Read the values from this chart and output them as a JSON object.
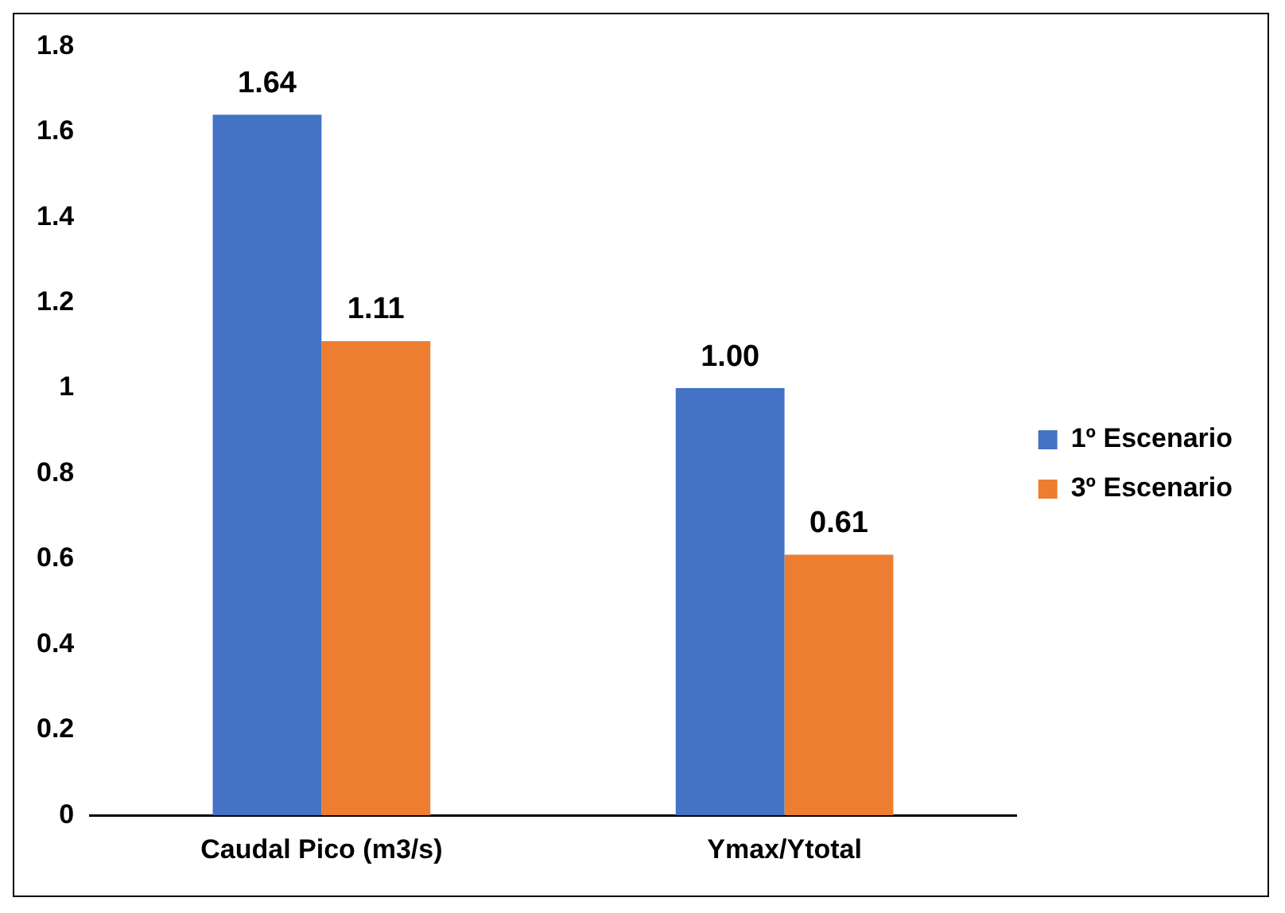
{
  "chart_data": {
    "type": "bar",
    "categories": [
      "Caudal Pico (m3/s)",
      "Ymax/Ytotal"
    ],
    "series": [
      {
        "name": "1º Escenario",
        "color": "#4472c4",
        "values": [
          1.64,
          1.0
        ],
        "value_labels": [
          "1.64",
          "1.00"
        ]
      },
      {
        "name": "3º Escenario",
        "color": "#ed7d31",
        "values": [
          1.11,
          0.61
        ],
        "value_labels": [
          "1.11",
          "0.61"
        ]
      }
    ],
    "ylim": [
      0,
      1.8
    ],
    "yticks": [
      0,
      0.2,
      0.4,
      0.6,
      0.8,
      1,
      1.2,
      1.4,
      1.6,
      1.8
    ],
    "grid": false,
    "legend": "right"
  }
}
